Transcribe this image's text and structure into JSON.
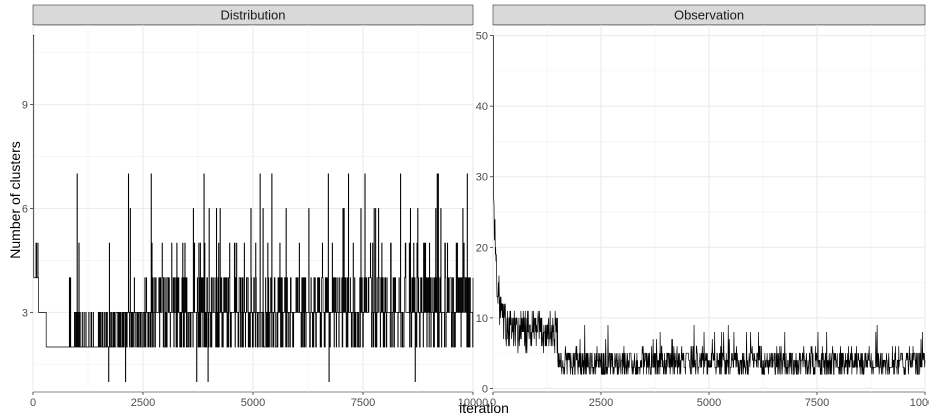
{
  "chart_data": {
    "type": "line",
    "xlabel": "iteration",
    "ylabel": "Number of clusters",
    "grid": true,
    "panels": [
      {
        "strip": "Distribution",
        "xlim": [
          0,
          10000
        ],
        "ylim": [
          0.7,
          11.3
        ],
        "x_ticks": [
          0,
          2500,
          5000,
          7500,
          10000
        ],
        "y_ticks": [
          3,
          6,
          9
        ],
        "trace_model": {
          "initial": 11,
          "burn_in_end": 300,
          "early_level": 2,
          "typical_range": [
            2,
            5
          ],
          "occasional_max": 7,
          "occasional_min": 1
        }
      },
      {
        "strip": "Observation",
        "xlim": [
          0,
          10000
        ],
        "ylim": [
          -0.5,
          51.5
        ],
        "x_ticks": [
          0,
          2500,
          5000,
          7500,
          10000
        ],
        "y_ticks": [
          0,
          10,
          20,
          30,
          40,
          50
        ],
        "trace_model": {
          "initial": 50,
          "decay_to": 8,
          "decay_end": 1500,
          "typical_range": [
            2,
            7
          ],
          "occasional_max": 9
        }
      }
    ]
  }
}
